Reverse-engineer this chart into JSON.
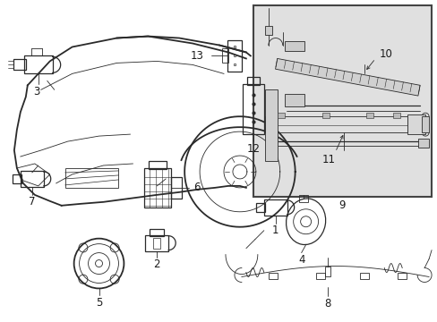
{
  "bg_color": "#ffffff",
  "line_color": "#2a2a2a",
  "label_color": "#1a1a1a",
  "inset_bg": "#e0e0e0",
  "inset_border": "#444444",
  "fig_width": 4.89,
  "fig_height": 3.6,
  "dpi": 100
}
